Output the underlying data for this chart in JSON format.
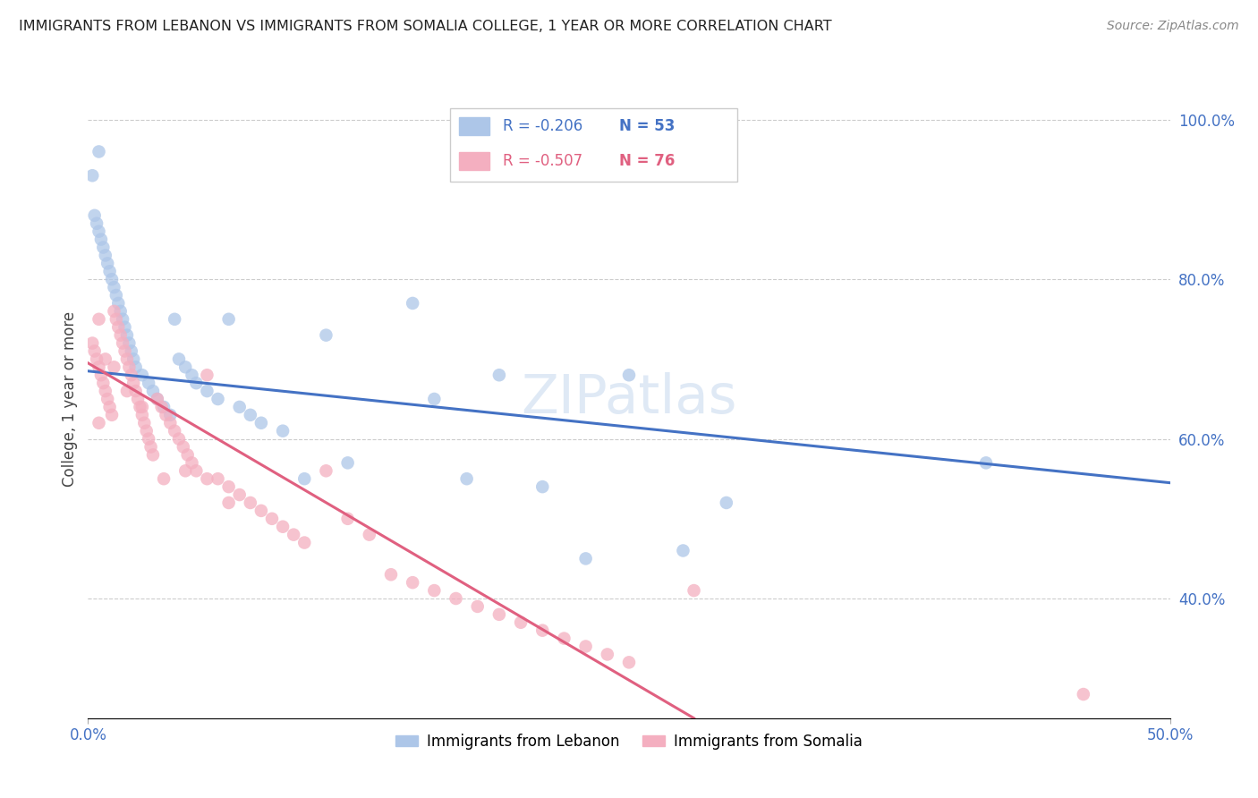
{
  "title": "IMMIGRANTS FROM LEBANON VS IMMIGRANTS FROM SOMALIA COLLEGE, 1 YEAR OR MORE CORRELATION CHART",
  "source": "Source: ZipAtlas.com",
  "ylabel": "College, 1 year or more",
  "xlim": [
    0.0,
    0.5
  ],
  "ylim": [
    0.25,
    1.05
  ],
  "yticks": [
    0.4,
    0.6,
    0.8,
    1.0
  ],
  "xticks": [
    0.0,
    0.5
  ],
  "legend_labels": [
    "Immigrants from Lebanon",
    "Immigrants from Somalia"
  ],
  "legend_r_leb": "-0.206",
  "legend_n_leb": "53",
  "legend_r_som": "-0.507",
  "legend_n_som": "76",
  "watermark": "ZIPatlas",
  "blue_color": "#adc6e8",
  "pink_color": "#f4afc0",
  "blue_line_color": "#4472c4",
  "pink_line_color": "#e06080",
  "leb_line_x0": 0.0,
  "leb_line_y0": 0.685,
  "leb_line_x1": 0.5,
  "leb_line_y1": 0.545,
  "som_line_x0": 0.0,
  "som_line_y0": 0.695,
  "som_line_x1": 0.28,
  "som_line_y1": 0.25,
  "lebanon_x": [
    0.002,
    0.003,
    0.004,
    0.005,
    0.006,
    0.007,
    0.008,
    0.009,
    0.01,
    0.011,
    0.012,
    0.013,
    0.014,
    0.015,
    0.016,
    0.017,
    0.018,
    0.019,
    0.02,
    0.021,
    0.022,
    0.025,
    0.028,
    0.03,
    0.032,
    0.035,
    0.038,
    0.04,
    0.042,
    0.045,
    0.048,
    0.05,
    0.055,
    0.06,
    0.065,
    0.07,
    0.075,
    0.08,
    0.09,
    0.1,
    0.11,
    0.12,
    0.15,
    0.16,
    0.175,
    0.19,
    0.21,
    0.23,
    0.25,
    0.275,
    0.295,
    0.415,
    0.005
  ],
  "lebanon_y": [
    0.93,
    0.88,
    0.87,
    0.86,
    0.85,
    0.84,
    0.83,
    0.82,
    0.81,
    0.8,
    0.79,
    0.78,
    0.77,
    0.76,
    0.75,
    0.74,
    0.73,
    0.72,
    0.71,
    0.7,
    0.69,
    0.68,
    0.67,
    0.66,
    0.65,
    0.64,
    0.63,
    0.75,
    0.7,
    0.69,
    0.68,
    0.67,
    0.66,
    0.65,
    0.75,
    0.64,
    0.63,
    0.62,
    0.61,
    0.55,
    0.73,
    0.57,
    0.77,
    0.65,
    0.55,
    0.68,
    0.54,
    0.45,
    0.68,
    0.46,
    0.52,
    0.57,
    0.96
  ],
  "somalia_x": [
    0.002,
    0.003,
    0.004,
    0.005,
    0.006,
    0.007,
    0.008,
    0.009,
    0.01,
    0.011,
    0.012,
    0.013,
    0.014,
    0.015,
    0.016,
    0.017,
    0.018,
    0.019,
    0.02,
    0.021,
    0.022,
    0.023,
    0.024,
    0.025,
    0.026,
    0.027,
    0.028,
    0.029,
    0.03,
    0.032,
    0.034,
    0.036,
    0.038,
    0.04,
    0.042,
    0.044,
    0.046,
    0.048,
    0.05,
    0.055,
    0.06,
    0.065,
    0.07,
    0.075,
    0.08,
    0.085,
    0.09,
    0.095,
    0.1,
    0.11,
    0.12,
    0.13,
    0.14,
    0.15,
    0.16,
    0.17,
    0.18,
    0.19,
    0.2,
    0.21,
    0.22,
    0.23,
    0.24,
    0.25,
    0.005,
    0.008,
    0.012,
    0.018,
    0.025,
    0.035,
    0.045,
    0.055,
    0.065,
    0.28,
    0.46,
    0.005
  ],
  "somalia_y": [
    0.72,
    0.71,
    0.7,
    0.69,
    0.68,
    0.67,
    0.66,
    0.65,
    0.64,
    0.63,
    0.76,
    0.75,
    0.74,
    0.73,
    0.72,
    0.71,
    0.7,
    0.69,
    0.68,
    0.67,
    0.66,
    0.65,
    0.64,
    0.63,
    0.62,
    0.61,
    0.6,
    0.59,
    0.58,
    0.65,
    0.64,
    0.63,
    0.62,
    0.61,
    0.6,
    0.59,
    0.58,
    0.57,
    0.56,
    0.68,
    0.55,
    0.54,
    0.53,
    0.52,
    0.51,
    0.5,
    0.49,
    0.48,
    0.47,
    0.56,
    0.5,
    0.48,
    0.43,
    0.42,
    0.41,
    0.4,
    0.39,
    0.38,
    0.37,
    0.36,
    0.35,
    0.34,
    0.33,
    0.32,
    0.75,
    0.7,
    0.69,
    0.66,
    0.64,
    0.55,
    0.56,
    0.55,
    0.52,
    0.41,
    0.28,
    0.62
  ]
}
